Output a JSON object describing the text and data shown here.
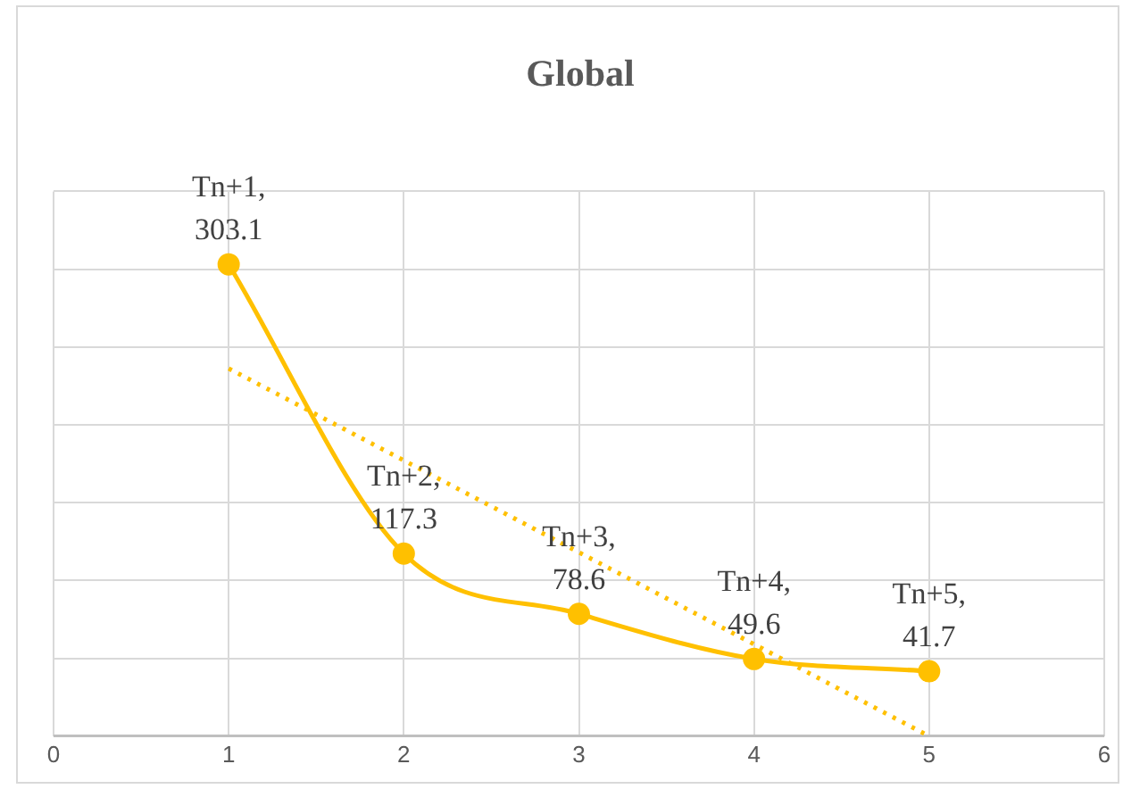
{
  "chart_data": {
    "type": "line",
    "title": "Global",
    "x": [
      1,
      2,
      3,
      4,
      5
    ],
    "series": [
      {
        "color": "#ffc000",
        "values": [
          303.1,
          117.3,
          78.6,
          49.6,
          41.7
        ],
        "value_labels": [
          "Tn+1, 303.1",
          "Tn+2, 117.3",
          "Tn+3, 78.6",
          "Tn+4, 49.6",
          "Tn+5, 41.7"
        ],
        "marker": "circle",
        "line_style": "solid"
      },
      {
        "color": "#ffc000",
        "x": [
          1,
          5
        ],
        "values": [
          236.2,
          0
        ],
        "marker": "none",
        "line_style": "dotted"
      }
    ],
    "xlim": [
      0,
      6
    ],
    "xticks": [
      0,
      1,
      2,
      3,
      4,
      5,
      6
    ],
    "ylim": [
      0,
      350
    ],
    "yticks": [
      {
        "value": 0,
        "label": null
      },
      {
        "value": 50,
        "label": null
      },
      {
        "value": 100,
        "label": null
      },
      {
        "value": 150,
        "label": null
      },
      {
        "value": 200,
        "label": null
      },
      {
        "value": 250,
        "label": null
      },
      {
        "value": 300,
        "label": null
      },
      {
        "value": 350,
        "label": null
      }
    ],
    "tick_labels": "x",
    "grid": true,
    "legend": false
  }
}
